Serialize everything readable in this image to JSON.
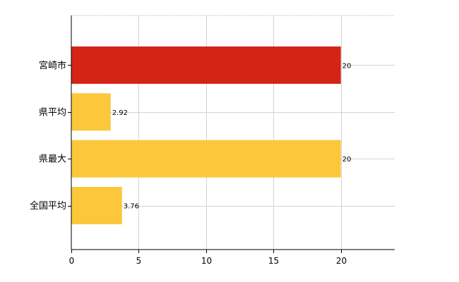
{
  "chart_data": {
    "type": "bar",
    "orientation": "horizontal",
    "title": "",
    "xlabel": "",
    "ylabel": "",
    "categories": [
      "宮崎市",
      "県平均",
      "県最大",
      "全国平均"
    ],
    "values": [
      20,
      2.92,
      20,
      3.76
    ],
    "value_labels": [
      "20",
      "2.92",
      "20",
      "3.76"
    ],
    "xlim": [
      0,
      24
    ],
    "xticks": [
      0,
      5,
      10,
      15,
      20
    ],
    "xtick_labels": [
      "0",
      "5",
      "10",
      "15",
      "20"
    ],
    "grid": true,
    "bar_colors": [
      "#d42416",
      "#fcc73a",
      "#fcc73a",
      "#fcc73a"
    ]
  }
}
